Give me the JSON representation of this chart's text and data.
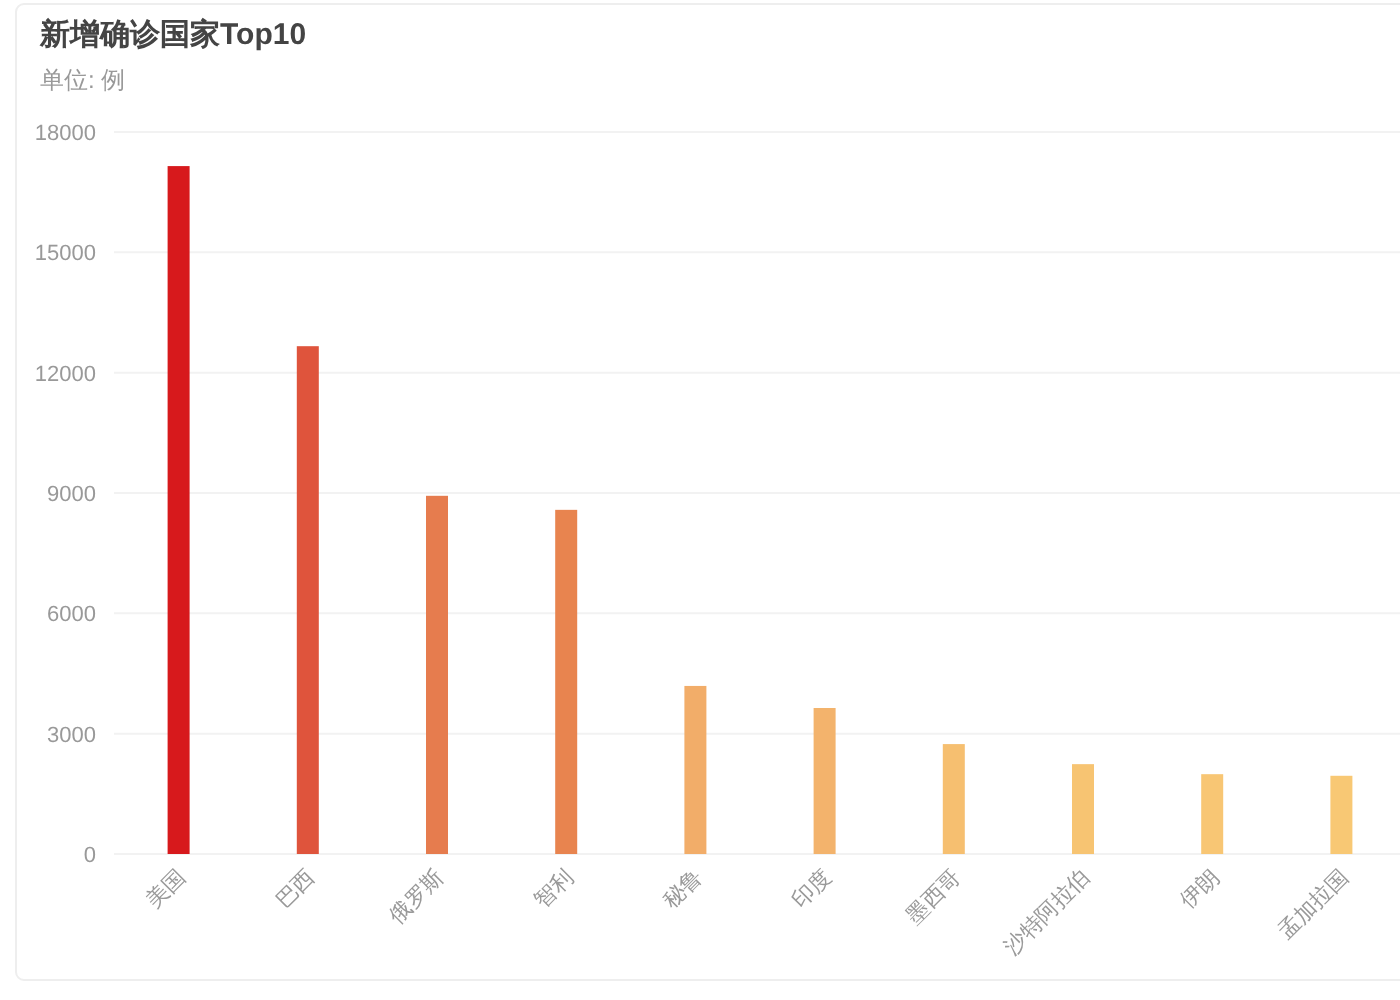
{
  "chart_data": {
    "type": "bar",
    "title": "新增确诊国家Top10",
    "subtitle": "单位: 例",
    "categories": [
      "美国",
      "巴西",
      "俄罗斯",
      "智利",
      "秘鲁",
      "印度",
      "墨西哥",
      "沙特阿拉伯",
      "伊朗",
      "孟加拉国"
    ],
    "values": [
      17150,
      12660,
      8930,
      8580,
      4190,
      3640,
      2740,
      2240,
      1990,
      1950
    ],
    "colors": [
      "#d7191c",
      "#df543c",
      "#e67c4e",
      "#e8844f",
      "#f2ad69",
      "#f3b36c",
      "#f6bf70",
      "#f7c472",
      "#f8c674",
      "#f8c874"
    ],
    "ylim": [
      0,
      18000
    ],
    "yticks": [
      0,
      3000,
      6000,
      9000,
      12000,
      15000,
      18000
    ],
    "grid": "y"
  }
}
